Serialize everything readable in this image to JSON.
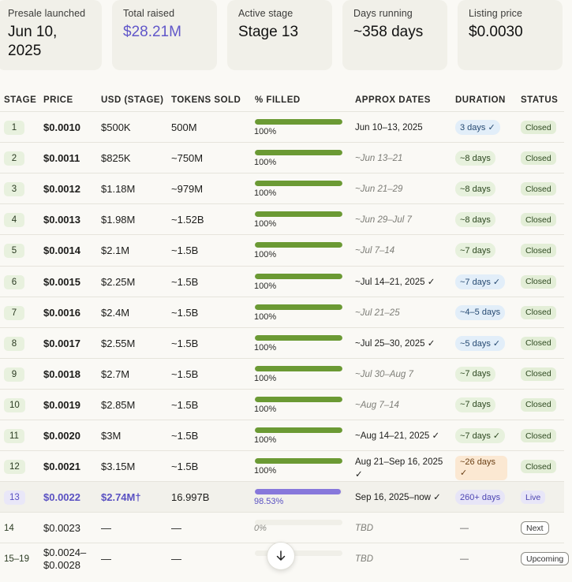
{
  "stats": [
    {
      "label": "Presale launched",
      "value": "Jun 10,\n2025"
    },
    {
      "label": "Total raised",
      "value": "$28.21M"
    },
    {
      "label": "Active stage",
      "value": "Stage 13"
    },
    {
      "label": "Days running",
      "value": "~358 days"
    },
    {
      "label": "Listing price",
      "value": "$0.0030"
    }
  ],
  "headers": [
    "STAGE",
    "PRICE",
    "USD (STAGE)",
    "TOKENS SOLD",
    "% FILLED",
    "APPROX DATES",
    "DURATION",
    "STATUS"
  ],
  "rows": [
    {
      "stage": "1",
      "price": "$0.0010",
      "usd": "$500K",
      "tokens": "500M",
      "fill": 1.0,
      "pct": "100%",
      "dates": "Jun 10–13, 2025",
      "est": false,
      "duration": "3 days ✓",
      "dur_style": "blue",
      "status": "Closed"
    },
    {
      "stage": "2",
      "price": "$0.0011",
      "usd": "$825K",
      "tokens": "~750M",
      "fill": 1.0,
      "pct": "100%",
      "dates": "~Jun 13–21",
      "est": true,
      "duration": "~8 days",
      "dur_style": "green",
      "status": "Closed"
    },
    {
      "stage": "3",
      "price": "$0.0012",
      "usd": "$1.18M",
      "tokens": "~979M",
      "fill": 1.0,
      "pct": "100%",
      "dates": "~Jun 21–29",
      "est": true,
      "duration": "~8 days",
      "dur_style": "green",
      "status": "Closed"
    },
    {
      "stage": "4",
      "price": "$0.0013",
      "usd": "$1.98M",
      "tokens": "~1.52B",
      "fill": 1.0,
      "pct": "100%",
      "dates": "~Jun 29–Jul 7",
      "est": true,
      "duration": "~8 days",
      "dur_style": "green",
      "status": "Closed"
    },
    {
      "stage": "5",
      "price": "$0.0014",
      "usd": "$2.1M",
      "tokens": "~1.5B",
      "fill": 1.0,
      "pct": "100%",
      "dates": "~Jul 7–14",
      "est": true,
      "duration": "~7 days",
      "dur_style": "green",
      "status": "Closed"
    },
    {
      "stage": "6",
      "price": "$0.0015",
      "usd": "$2.25M",
      "tokens": "~1.5B",
      "fill": 1.0,
      "pct": "100%",
      "dates": "~Jul 14–21, 2025 ✓",
      "est": false,
      "duration": "~7 days ✓",
      "dur_style": "blue",
      "status": "Closed"
    },
    {
      "stage": "7",
      "price": "$0.0016",
      "usd": "$2.4M",
      "tokens": "~1.5B",
      "fill": 1.0,
      "pct": "100%",
      "dates": "~Jul 21–25",
      "est": true,
      "duration": "~4–5 days",
      "dur_style": "blue",
      "status": "Closed"
    },
    {
      "stage": "8",
      "price": "$0.0017",
      "usd": "$2.55M",
      "tokens": "~1.5B",
      "fill": 1.0,
      "pct": "100%",
      "dates": "~Jul 25–30, 2025 ✓",
      "est": false,
      "duration": "~5 days ✓",
      "dur_style": "blue",
      "status": "Closed"
    },
    {
      "stage": "9",
      "price": "$0.0018",
      "usd": "$2.7M",
      "tokens": "~1.5B",
      "fill": 1.0,
      "pct": "100%",
      "dates": "~Jul 30–Aug 7",
      "est": true,
      "duration": "~7 days",
      "dur_style": "green",
      "status": "Closed"
    },
    {
      "stage": "10",
      "price": "$0.0019",
      "usd": "$2.85M",
      "tokens": "~1.5B",
      "fill": 1.0,
      "pct": "100%",
      "dates": "~Aug 7–14",
      "est": true,
      "duration": "~7 days",
      "dur_style": "green",
      "status": "Closed"
    },
    {
      "stage": "11",
      "price": "$0.0020",
      "usd": "$3M",
      "tokens": "~1.5B",
      "fill": 1.0,
      "pct": "100%",
      "dates": "~Aug 14–21, 2025 ✓",
      "est": false,
      "duration": "~7 days ✓",
      "dur_style": "green",
      "status": "Closed"
    },
    {
      "stage": "12",
      "price": "$0.0021",
      "usd": "$3.15M",
      "tokens": "~1.5B",
      "fill": 1.0,
      "pct": "100%",
      "dates": "Aug 21–Sep 16, 2025\n✓",
      "est": false,
      "duration": "~26 days\n✓",
      "dur_style": "orange",
      "status": "Closed"
    },
    {
      "stage": "13",
      "price": "$0.0022",
      "usd": "$2.74M†",
      "tokens": "16.997B",
      "fill": 0.9853,
      "pct": "98.53%",
      "dates": "Sep 16, 2025–now ✓",
      "est": false,
      "duration": "260+ days",
      "dur_style": "purple",
      "status": "Live",
      "live": true
    },
    {
      "stage": "14",
      "price": "$0.0023",
      "usd": "—",
      "tokens": "—",
      "fill": 0,
      "pct": "0%",
      "dates": "TBD",
      "est": true,
      "duration": "—",
      "dur_style": "none",
      "status": "Next",
      "future": true
    },
    {
      "stage": "15–19",
      "price": "$0.0024–\n$0.0028",
      "usd": "—",
      "tokens": "—",
      "fill": 0,
      "pct": "",
      "dates": "TBD",
      "est": true,
      "duration": "—",
      "dur_style": "none",
      "status": "Upcoming",
      "future": true
    }
  ],
  "scroll_button": {
    "icon": "arrow-down-icon"
  }
}
